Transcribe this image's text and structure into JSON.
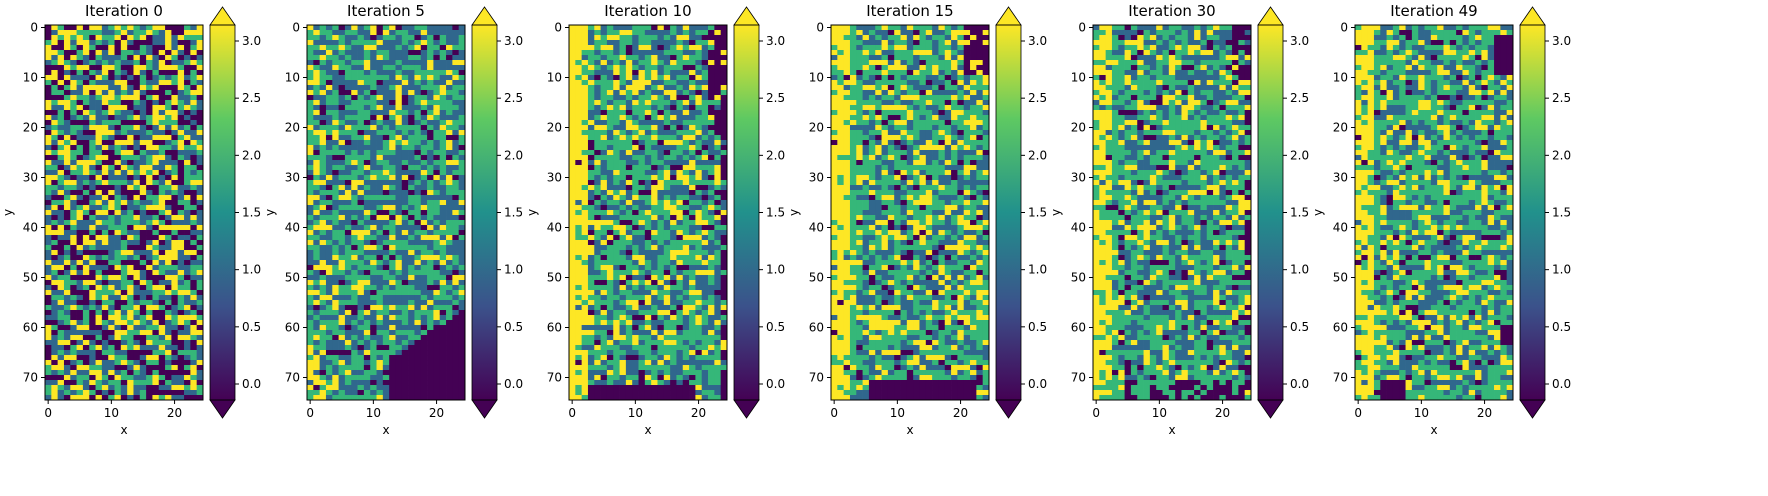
{
  "chart_data": [
    {
      "type": "heatmap",
      "title": "Iteration 0",
      "xlabel": "x",
      "ylabel": "y",
      "grid_size": [
        25,
        75
      ],
      "xticks": [
        0,
        10,
        20
      ],
      "yticks": [
        0,
        10,
        20,
        30,
        40,
        50,
        60,
        70
      ],
      "colorbar": {
        "range": [
          0.0,
          3.0
        ],
        "ticks": [
          "0.0",
          "0.5",
          "1.0",
          "1.5",
          "2.0",
          "2.5",
          "3.0"
        ],
        "extend": "both"
      },
      "pattern": {
        "values": [
          0,
          1,
          2,
          3
        ],
        "state": "random, evenly mixed"
      }
    },
    {
      "type": "heatmap",
      "title": "Iteration 5",
      "xlabel": "x",
      "ylabel": "y",
      "grid_size": [
        25,
        75
      ],
      "xticks": [
        0,
        10,
        20
      ],
      "yticks": [
        0,
        10,
        20,
        30,
        40,
        50,
        60,
        70
      ],
      "colorbar": {
        "range": [
          0.0,
          3.0
        ],
        "ticks": [
          "0.0",
          "0.5",
          "1.0",
          "1.5",
          "2.0",
          "2.5",
          "3.0"
        ],
        "extend": "both"
      },
      "pattern": {
        "values": [
          0,
          1,
          2,
          3
        ],
        "state": "mostly 1-2, value 0 region forming at bottom-right"
      }
    },
    {
      "type": "heatmap",
      "title": "Iteration 10",
      "xlabel": "x",
      "ylabel": "y",
      "grid_size": [
        25,
        75
      ],
      "xticks": [
        0,
        10,
        20
      ],
      "yticks": [
        0,
        10,
        20,
        30,
        40,
        50,
        60,
        70
      ],
      "colorbar": {
        "range": [
          0.0,
          3.0
        ],
        "ticks": [
          "0.0",
          "0.5",
          "1.0",
          "1.5",
          "2.0",
          "2.5",
          "3.0"
        ],
        "extend": "both"
      },
      "pattern": {
        "values": [
          0,
          1,
          2,
          3
        ],
        "state": "value 3 band along left edge, value 0 along bottom and right edges"
      }
    },
    {
      "type": "heatmap",
      "title": "Iteration 15",
      "xlabel": "x",
      "ylabel": "y",
      "grid_size": [
        25,
        75
      ],
      "xticks": [
        0,
        10,
        20
      ],
      "yticks": [
        0,
        10,
        20,
        30,
        40,
        50,
        60,
        70
      ],
      "colorbar": {
        "range": [
          0.0,
          3.0
        ],
        "ticks": [
          "0.0",
          "0.5",
          "1.0",
          "1.5",
          "2.0",
          "2.5",
          "3.0"
        ],
        "extend": "both"
      },
      "pattern": {
        "values": [
          0,
          1,
          2,
          3
        ],
        "state": "value 3 stripes at left, value 0 band at bottom"
      }
    },
    {
      "type": "heatmap",
      "title": "Iteration 30",
      "xlabel": "x",
      "ylabel": "y",
      "grid_size": [
        25,
        75
      ],
      "xticks": [
        0,
        10,
        20
      ],
      "yticks": [
        0,
        10,
        20,
        30,
        40,
        50,
        60,
        70
      ],
      "colorbar": {
        "range": [
          0.0,
          3.0
        ],
        "ticks": [
          "0.0",
          "0.5",
          "1.0",
          "1.5",
          "2.0",
          "2.5",
          "3.0"
        ],
        "extend": "both"
      },
      "pattern": {
        "values": [
          0,
          1,
          2,
          3
        ],
        "state": "value 3 stripes at left, value 0 at right and bottom edges"
      }
    },
    {
      "type": "heatmap",
      "title": "Iteration 49",
      "xlabel": "x",
      "ylabel": "y",
      "grid_size": [
        25,
        75
      ],
      "xticks": [
        0,
        10,
        20
      ],
      "yticks": [
        0,
        10,
        20,
        30,
        40,
        50,
        60,
        70
      ],
      "colorbar": {
        "range": [
          0.0,
          3.0
        ],
        "ticks": [
          "0.0",
          "0.5",
          "1.0",
          "1.5",
          "2.0",
          "2.5",
          "3.0"
        ],
        "extend": "both"
      },
      "pattern": {
        "values": [
          0,
          1,
          2,
          3
        ],
        "state": "value 3 stripes at left, value 0 block at top-right"
      }
    }
  ],
  "colormap": {
    "name": "viridis",
    "colors": [
      "#440154",
      "#3b528b",
      "#21918c",
      "#5ec962",
      "#fde725"
    ],
    "cell_colors": {
      "0": "#440154",
      "1": "#30678d",
      "2": "#35b779",
      "3": "#fde725"
    }
  }
}
